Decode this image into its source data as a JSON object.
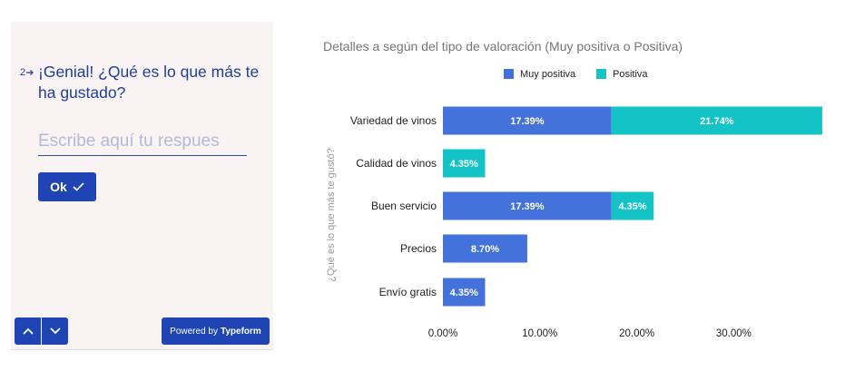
{
  "typeform": {
    "question_number": "2",
    "question_text": "¡Genial! ¿Qué es lo que más te ha gustado?",
    "input_value": "",
    "input_placeholder": "Escribe aquí tu respues",
    "ok_label": "Ok",
    "powered_prefix": "Powered by",
    "powered_brand": "Typeform",
    "accent_color": "#1f45b5",
    "text_color": "#1e3f9c",
    "panel_bg": "#f9f3f3"
  },
  "chart_data": {
    "type": "bar",
    "orientation": "horizontal",
    "stacked": true,
    "title": "Detalles a según del tipo de valoración (Muy positiva o Positiva)",
    "xlabel": "",
    "ylabel": "¿Qué es lo que más te gustó?",
    "categories": [
      "Variedad de vinos",
      "Calidad de vinos",
      "Buen servicio",
      "Precios",
      "Envío gratis"
    ],
    "series": [
      {
        "name": "Muy positiva",
        "color": "#4472db",
        "values": [
          17.39,
          0,
          17.39,
          8.7,
          4.35
        ],
        "labels": [
          "17.39%",
          "",
          "17.39%",
          "8.70%",
          "4.35%"
        ]
      },
      {
        "name": "Positiva",
        "color": "#14c3c5",
        "values": [
          21.74,
          4.35,
          4.35,
          0,
          0
        ],
        "labels": [
          "21.74%",
          "4.35%",
          "4.35%",
          "",
          ""
        ]
      }
    ],
    "xlim": [
      0,
      40
    ],
    "xticks": [
      0,
      10,
      20,
      30
    ],
    "xtick_labels": [
      "0.00%",
      "10.00%",
      "20.00%",
      "30.00%"
    ],
    "legend_position": "top",
    "grid": false
  }
}
